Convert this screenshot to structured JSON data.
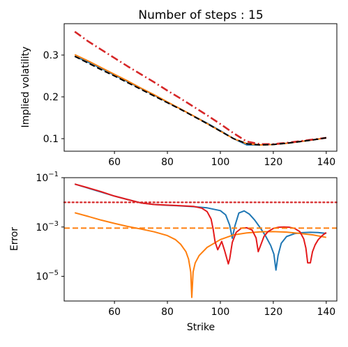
{
  "chart_data": [
    {
      "type": "line",
      "title": "Number of steps : 15",
      "xlabel": "",
      "ylabel": "Implied volatility",
      "xlim": [
        41,
        144
      ],
      "ylim": [
        0.07,
        0.375
      ],
      "x_ticks": [
        60,
        80,
        100,
        120,
        140
      ],
      "y_ticks": [
        0.1,
        0.2,
        0.3
      ],
      "y_tick_labels": [
        "0.1",
        "0.2",
        "0.3"
      ],
      "grid": false,
      "series": [
        {
          "color": "#1f77b4",
          "style": "solid",
          "x": [
            45,
            50,
            55,
            60,
            65,
            70,
            75,
            80,
            85,
            90,
            95,
            100,
            105,
            110,
            115,
            120,
            125,
            130,
            135,
            140
          ],
          "y": [
            0.297,
            0.283,
            0.268,
            0.252,
            0.236,
            0.22,
            0.204,
            0.187,
            0.171,
            0.154,
            0.137,
            0.119,
            0.1,
            0.085,
            0.085,
            0.086,
            0.089,
            0.093,
            0.097,
            0.102
          ]
        },
        {
          "color": "#ff7f0e",
          "style": "solid",
          "x": [
            45,
            50,
            55,
            60,
            65,
            70,
            75,
            80,
            85,
            90,
            95,
            100,
            105,
            110,
            115,
            120,
            125,
            130,
            135,
            140
          ],
          "y": [
            0.301,
            0.286,
            0.27,
            0.254,
            0.238,
            0.221,
            0.205,
            0.188,
            0.171,
            0.154,
            0.136,
            0.118,
            0.1,
            0.088,
            0.085,
            0.086,
            0.089,
            0.093,
            0.097,
            0.102
          ]
        },
        {
          "color": "#d62728",
          "style": "dashdot",
          "x": [
            45,
            50,
            55,
            60,
            65,
            70,
            75,
            80,
            85,
            90,
            95,
            100,
            105,
            110,
            115,
            120,
            125,
            130,
            135,
            140
          ],
          "y": [
            0.356,
            0.333,
            0.313,
            0.293,
            0.273,
            0.254,
            0.235,
            0.215,
            0.196,
            0.176,
            0.156,
            0.135,
            0.113,
            0.093,
            0.087,
            0.087,
            0.09,
            0.094,
            0.098,
            0.102
          ]
        },
        {
          "color": "#000000",
          "style": "dashed",
          "x": [
            45,
            50,
            55,
            60,
            65,
            70,
            75,
            80,
            85,
            90,
            95,
            100,
            105,
            110,
            115,
            120,
            125,
            130,
            135,
            140
          ],
          "y": [
            0.297,
            0.281,
            0.265,
            0.25,
            0.234,
            0.218,
            0.202,
            0.186,
            0.17,
            0.153,
            0.136,
            0.118,
            0.1,
            0.088,
            0.085,
            0.086,
            0.089,
            0.093,
            0.097,
            0.102
          ]
        }
      ]
    },
    {
      "type": "line",
      "title": "",
      "xlabel": "Strike",
      "ylabel": "Error",
      "xlim": [
        41,
        144
      ],
      "ylim": [
        1e-06,
        0.1
      ],
      "y_scale": "log",
      "x_ticks": [
        60,
        80,
        100,
        120,
        140
      ],
      "y_ticks": [
        1e-05,
        0.001,
        0.1
      ],
      "y_tick_labels": [
        {
          "base": "10",
          "exp": "−5"
        },
        {
          "base": "10",
          "exp": "−3"
        },
        {
          "base": "10",
          "exp": "−1"
        }
      ],
      "grid": false,
      "series": [
        {
          "color": "#1f77b4",
          "style": "solid",
          "x": [
            45,
            50,
            55,
            60,
            65,
            70,
            75,
            80,
            85,
            90,
            95,
            100,
            102,
            103.5,
            104.5,
            105.5,
            107,
            109,
            111,
            113,
            115,
            117,
            119,
            120.2,
            121,
            121.8,
            123,
            125,
            128,
            131,
            134,
            137,
            140
          ],
          "y": [
            0.055,
            0.038,
            0.026,
            0.018,
            0.013,
            0.0095,
            0.0082,
            0.0076,
            0.0072,
            0.0067,
            0.006,
            0.0046,
            0.0031,
            0.0012,
            0.00035,
            0.0011,
            0.0037,
            0.0045,
            0.0033,
            0.0019,
            0.00095,
            0.00045,
            0.00018,
            8e-05,
            1.8e-05,
            7e-05,
            0.00022,
            0.00041,
            0.00054,
            0.00059,
            0.00061,
            0.0006,
            0.00055
          ]
        },
        {
          "color": "#ff7f0e",
          "style": "solid",
          "x": [
            45,
            50,
            55,
            60,
            65,
            70,
            75,
            80,
            83,
            85,
            87,
            88,
            88.8,
            89.2,
            89.7,
            90.5,
            92,
            95,
            100,
            105,
            110,
            115,
            120,
            125,
            130,
            135,
            140
          ],
          "y": [
            0.0038,
            0.0027,
            0.0019,
            0.0014,
            0.00105,
            0.00083,
            0.00064,
            0.00045,
            0.00031,
            0.0002,
            0.0001,
            5e-05,
            1.5e-05,
            1.4e-06,
            1.5e-05,
            3.5e-05,
            7e-05,
            0.00015,
            0.00031,
            0.00048,
            0.00058,
            0.00064,
            0.00065,
            0.00062,
            0.00055,
            0.00048,
            0.00038
          ]
        },
        {
          "color": "#e41a1c",
          "style": "solid",
          "x": [
            45,
            50,
            55,
            60,
            65,
            70,
            75,
            80,
            85,
            90,
            93,
            95,
            96.5,
            97.3,
            98,
            99,
            99.8,
            100.5,
            101.5,
            102.5,
            103,
            103.5,
            104.5,
            106,
            108,
            110,
            112,
            113.5,
            114.3,
            115.2,
            116.5,
            118,
            120,
            122,
            124,
            126,
            128,
            130,
            131.5,
            132.3,
            133,
            134,
            134.8,
            135.8,
            137,
            138.5,
            140
          ],
          "y": [
            0.055,
            0.039,
            0.027,
            0.018,
            0.013,
            0.0095,
            0.0082,
            0.0077,
            0.0073,
            0.0068,
            0.0058,
            0.0042,
            0.0021,
            0.0008,
            0.00025,
            0.00012,
            0.00018,
            0.00026,
            0.00012,
            5e-05,
            3.2e-05,
            5e-05,
            0.00024,
            0.00061,
            0.0009,
            0.00093,
            0.00075,
            0.00036,
            0.0001,
            0.00018,
            0.00042,
            0.00065,
            0.00087,
            0.00098,
            0.001,
            0.00098,
            0.00088,
            0.00065,
            0.00033,
            0.00014,
            3.5e-05,
            3.5e-05,
            0.0001,
            0.00019,
            0.00031,
            0.00045,
            0.0006
          ]
        },
        {
          "color": "#d62728",
          "style": "dotted",
          "x": [
            41,
            144
          ],
          "y": [
            0.01,
            0.01
          ]
        },
        {
          "color": "#ff7f0e",
          "style": "dashed",
          "x": [
            41,
            144
          ],
          "y": [
            0.0009,
            0.0009
          ]
        }
      ]
    }
  ]
}
